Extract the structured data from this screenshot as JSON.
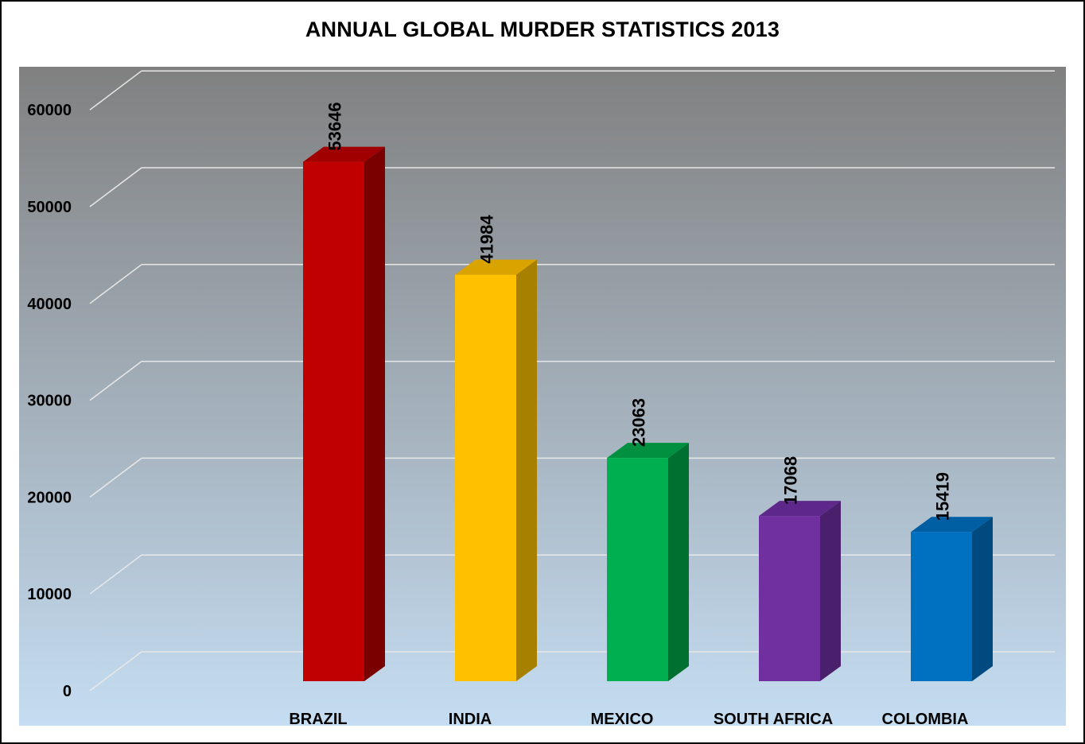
{
  "chart_data": {
    "type": "bar",
    "title": "ANNUAL GLOBAL MURDER STATISTICS 2013",
    "xlabel": "",
    "ylabel": "",
    "categories": [
      "BRAZIL",
      "INDIA",
      "MEXICO",
      "SOUTH AFRICA",
      "COLOMBIA"
    ],
    "values": [
      53646,
      41984,
      23063,
      17068,
      15419
    ],
    "ylim": [
      0,
      60000
    ],
    "yticks": [
      "0",
      "10000",
      "20000",
      "30000",
      "40000",
      "50000",
      "60000"
    ],
    "data_labels": [
      "53646",
      "41984",
      "23063",
      "17068",
      "15419"
    ],
    "grid": true,
    "legend": "none",
    "colors": {
      "front": [
        "#c00000",
        "#ffc000",
        "#00b050",
        "#7030a0",
        "#0070c0"
      ],
      "side": [
        "#7a0000",
        "#a88000",
        "#007030",
        "#4a1f6b",
        "#004a80"
      ],
      "top": [
        "#a00000",
        "#d9a300",
        "#009040",
        "#5e288a",
        "#005fa3"
      ],
      "background_top": "#808080",
      "background_bottom": "#c5ddf2",
      "gridline": "#e8e8e8"
    }
  }
}
